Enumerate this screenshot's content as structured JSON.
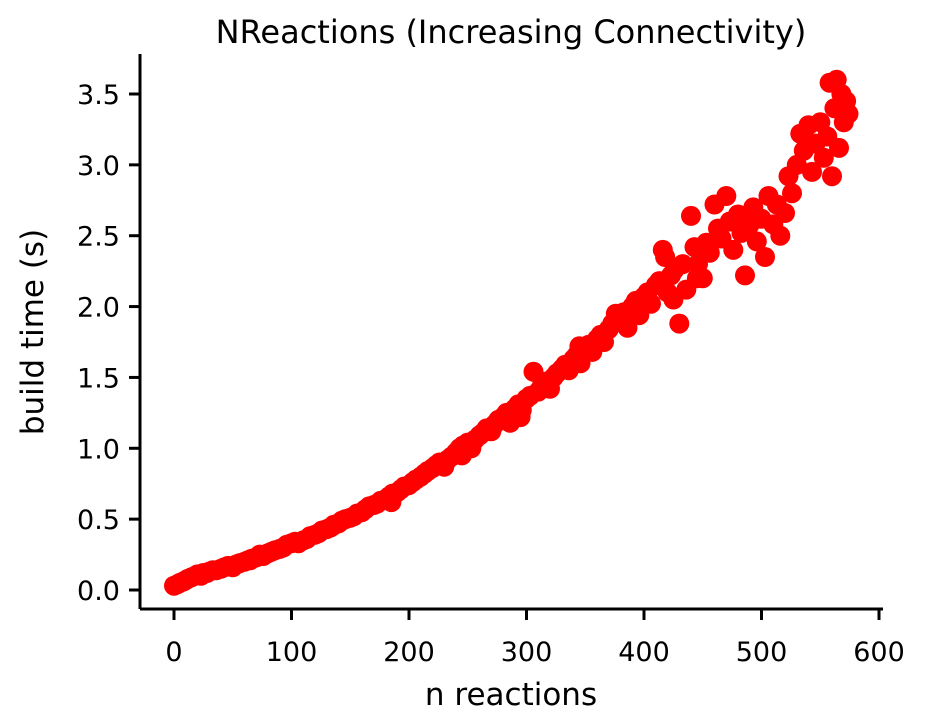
{
  "chart_data": {
    "type": "scatter",
    "title": "NReactions (Increasing Connectivity)",
    "xlabel": "n reactions",
    "ylabel": "build time (s)",
    "xlim": [
      -30,
      605
    ],
    "ylim": [
      -0.15,
      3.8
    ],
    "xticks": [
      0,
      100,
      200,
      300,
      400,
      500,
      600
    ],
    "xtick_labels": [
      "0",
      "100",
      "200",
      "300",
      "400",
      "500",
      "600"
    ],
    "yticks": [
      0.0,
      0.5,
      1.0,
      1.5,
      2.0,
      2.5,
      3.0,
      3.5
    ],
    "ytick_labels": [
      "0.0",
      "0.5",
      "1.0",
      "1.5",
      "2.0",
      "2.5",
      "3.0",
      "3.5"
    ],
    "grid": false,
    "marker_color": "#ff0000",
    "points": [
      [
        0,
        0.03
      ],
      [
        3,
        0.04
      ],
      [
        5,
        0.05
      ],
      [
        8,
        0.06
      ],
      [
        10,
        0.07
      ],
      [
        12,
        0.08
      ],
      [
        15,
        0.09
      ],
      [
        18,
        0.1
      ],
      [
        20,
        0.11
      ],
      [
        23,
        0.1
      ],
      [
        25,
        0.12
      ],
      [
        28,
        0.12
      ],
      [
        30,
        0.13
      ],
      [
        33,
        0.14
      ],
      [
        36,
        0.14
      ],
      [
        40,
        0.15
      ],
      [
        43,
        0.16
      ],
      [
        46,
        0.17
      ],
      [
        50,
        0.16
      ],
      [
        53,
        0.18
      ],
      [
        56,
        0.19
      ],
      [
        60,
        0.2
      ],
      [
        63,
        0.21
      ],
      [
        66,
        0.22
      ],
      [
        70,
        0.23
      ],
      [
        73,
        0.25
      ],
      [
        76,
        0.24
      ],
      [
        80,
        0.26
      ],
      [
        83,
        0.27
      ],
      [
        86,
        0.28
      ],
      [
        90,
        0.29
      ],
      [
        93,
        0.3
      ],
      [
        96,
        0.32
      ],
      [
        100,
        0.33
      ],
      [
        103,
        0.34
      ],
      [
        106,
        0.33
      ],
      [
        110,
        0.35
      ],
      [
        113,
        0.36
      ],
      [
        116,
        0.38
      ],
      [
        120,
        0.39
      ],
      [
        123,
        0.4
      ],
      [
        126,
        0.42
      ],
      [
        130,
        0.43
      ],
      [
        133,
        0.44
      ],
      [
        136,
        0.46
      ],
      [
        140,
        0.47
      ],
      [
        143,
        0.49
      ],
      [
        146,
        0.5
      ],
      [
        150,
        0.51
      ],
      [
        153,
        0.52
      ],
      [
        156,
        0.54
      ],
      [
        160,
        0.55
      ],
      [
        163,
        0.57
      ],
      [
        166,
        0.59
      ],
      [
        170,
        0.6
      ],
      [
        173,
        0.61
      ],
      [
        176,
        0.63
      ],
      [
        180,
        0.64
      ],
      [
        183,
        0.66
      ],
      [
        186,
        0.68
      ],
      [
        190,
        0.69
      ],
      [
        193,
        0.71
      ],
      [
        196,
        0.73
      ],
      [
        200,
        0.74
      ],
      [
        203,
        0.76
      ],
      [
        206,
        0.78
      ],
      [
        210,
        0.8
      ],
      [
        213,
        0.82
      ],
      [
        216,
        0.84
      ],
      [
        220,
        0.86
      ],
      [
        223,
        0.88
      ],
      [
        226,
        0.9
      ],
      [
        230,
        0.87
      ],
      [
        233,
        0.92
      ],
      [
        236,
        0.94
      ],
      [
        240,
        0.97
      ],
      [
        243,
        1.0
      ],
      [
        246,
        1.02
      ],
      [
        250,
        1.04
      ],
      [
        253,
        1.0
      ],
      [
        256,
        1.06
      ],
      [
        260,
        1.09
      ],
      [
        263,
        1.11
      ],
      [
        266,
        1.14
      ],
      [
        270,
        1.12
      ],
      [
        273,
        1.17
      ],
      [
        276,
        1.2
      ],
      [
        280,
        1.22
      ],
      [
        283,
        1.25
      ],
      [
        286,
        1.18
      ],
      [
        290,
        1.28
      ],
      [
        293,
        1.31
      ],
      [
        296,
        1.27
      ],
      [
        300,
        1.35
      ],
      [
        303,
        1.37
      ],
      [
        306,
        1.54
      ],
      [
        310,
        1.4
      ],
      [
        313,
        1.44
      ],
      [
        316,
        1.47
      ],
      [
        320,
        1.42
      ],
      [
        323,
        1.5
      ],
      [
        326,
        1.53
      ],
      [
        330,
        1.56
      ],
      [
        333,
        1.59
      ],
      [
        336,
        1.55
      ],
      [
        340,
        1.63
      ],
      [
        343,
        1.66
      ],
      [
        346,
        1.6
      ],
      [
        350,
        1.7
      ],
      [
        353,
        1.73
      ],
      [
        356,
        1.68
      ],
      [
        360,
        1.77
      ],
      [
        363,
        1.8
      ],
      [
        366,
        1.75
      ],
      [
        370,
        1.84
      ],
      [
        373,
        1.88
      ],
      [
        376,
        1.95
      ],
      [
        380,
        1.92
      ],
      [
        383,
        1.96
      ],
      [
        386,
        1.85
      ],
      [
        390,
        2.0
      ],
      [
        393,
        2.04
      ],
      [
        396,
        1.94
      ],
      [
        400,
        2.07
      ],
      [
        403,
        2.1
      ],
      [
        406,
        2.02
      ],
      [
        410,
        2.15
      ],
      [
        413,
        2.18
      ],
      [
        416,
        2.4
      ],
      [
        418,
        2.35
      ],
      [
        420,
        2.1
      ],
      [
        423,
        2.22
      ],
      [
        426,
        2.26
      ],
      [
        430,
        1.88
      ],
      [
        433,
        2.3
      ],
      [
        436,
        2.12
      ],
      [
        440,
        2.64
      ],
      [
        443,
        2.42
      ],
      [
        446,
        2.3
      ],
      [
        450,
        2.2
      ],
      [
        453,
        2.45
      ],
      [
        456,
        2.38
      ],
      [
        460,
        2.72
      ],
      [
        463,
        2.55
      ],
      [
        466,
        2.48
      ],
      [
        470,
        2.78
      ],
      [
        473,
        2.6
      ],
      [
        476,
        2.4
      ],
      [
        480,
        2.65
      ],
      [
        483,
        2.52
      ],
      [
        486,
        2.22
      ],
      [
        490,
        2.58
      ],
      [
        493,
        2.7
      ],
      [
        496,
        2.46
      ],
      [
        500,
        2.62
      ],
      [
        503,
        2.35
      ],
      [
        506,
        2.78
      ],
      [
        510,
        2.58
      ],
      [
        513,
        2.72
      ],
      [
        516,
        2.5
      ],
      [
        520,
        2.66
      ],
      [
        523,
        2.92
      ],
      [
        526,
        2.8
      ],
      [
        530,
        3.0
      ],
      [
        533,
        3.22
      ],
      [
        536,
        3.1
      ],
      [
        540,
        3.28
      ],
      [
        543,
        2.95
      ],
      [
        546,
        3.15
      ],
      [
        550,
        3.3
      ],
      [
        553,
        3.05
      ],
      [
        556,
        3.2
      ],
      [
        558,
        3.58
      ],
      [
        560,
        2.92
      ],
      [
        562,
        3.4
      ],
      [
        564,
        3.6
      ],
      [
        566,
        3.12
      ],
      [
        568,
        3.5
      ],
      [
        570,
        3.3
      ],
      [
        572,
        3.45
      ],
      [
        574,
        3.36
      ],
      [
        65,
        0.21
      ],
      [
        135,
        0.45
      ],
      [
        185,
        0.62
      ],
      [
        245,
        0.95
      ],
      [
        295,
        1.22
      ],
      [
        345,
        1.72
      ],
      [
        395,
        1.98
      ],
      [
        425,
        2.05
      ],
      [
        445,
        2.2
      ]
    ]
  }
}
